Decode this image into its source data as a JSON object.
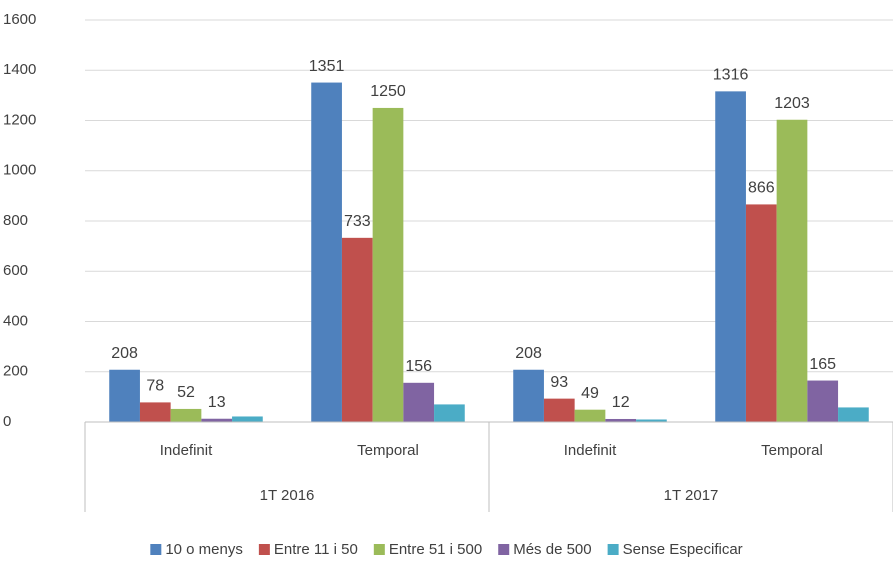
{
  "chart_data": {
    "type": "bar",
    "groups": [
      {
        "name": "1T 2016",
        "categories": [
          "Indefinit",
          "Temporal"
        ]
      },
      {
        "name": "1T 2017",
        "categories": [
          "Indefinit",
          "Temporal"
        ]
      }
    ],
    "series": [
      {
        "name": "10 o menys",
        "color": "#4f81bd",
        "values": [
          208,
          1351,
          208,
          1316
        ],
        "show_labels": true
      },
      {
        "name": "Entre 11 i 50",
        "color": "#c0504d",
        "values": [
          78,
          733,
          93,
          866
        ],
        "show_labels": true
      },
      {
        "name": "Entre 51 i 500",
        "color": "#9bbb59",
        "values": [
          52,
          1250,
          49,
          1203
        ],
        "show_labels": true
      },
      {
        "name": "Més de 500",
        "color": "#8064a2",
        "values": [
          13,
          156,
          12,
          165
        ],
        "show_labels": true
      },
      {
        "name": "Sense Especificar",
        "color": "#4bacc6",
        "values": [
          22,
          70,
          10,
          58
        ],
        "show_labels": false
      }
    ],
    "ylim": [
      0,
      1600
    ],
    "yticks": [
      0,
      200,
      400,
      600,
      800,
      1000,
      1200,
      1400,
      1600
    ],
    "grid": true,
    "legend": "bottom"
  }
}
